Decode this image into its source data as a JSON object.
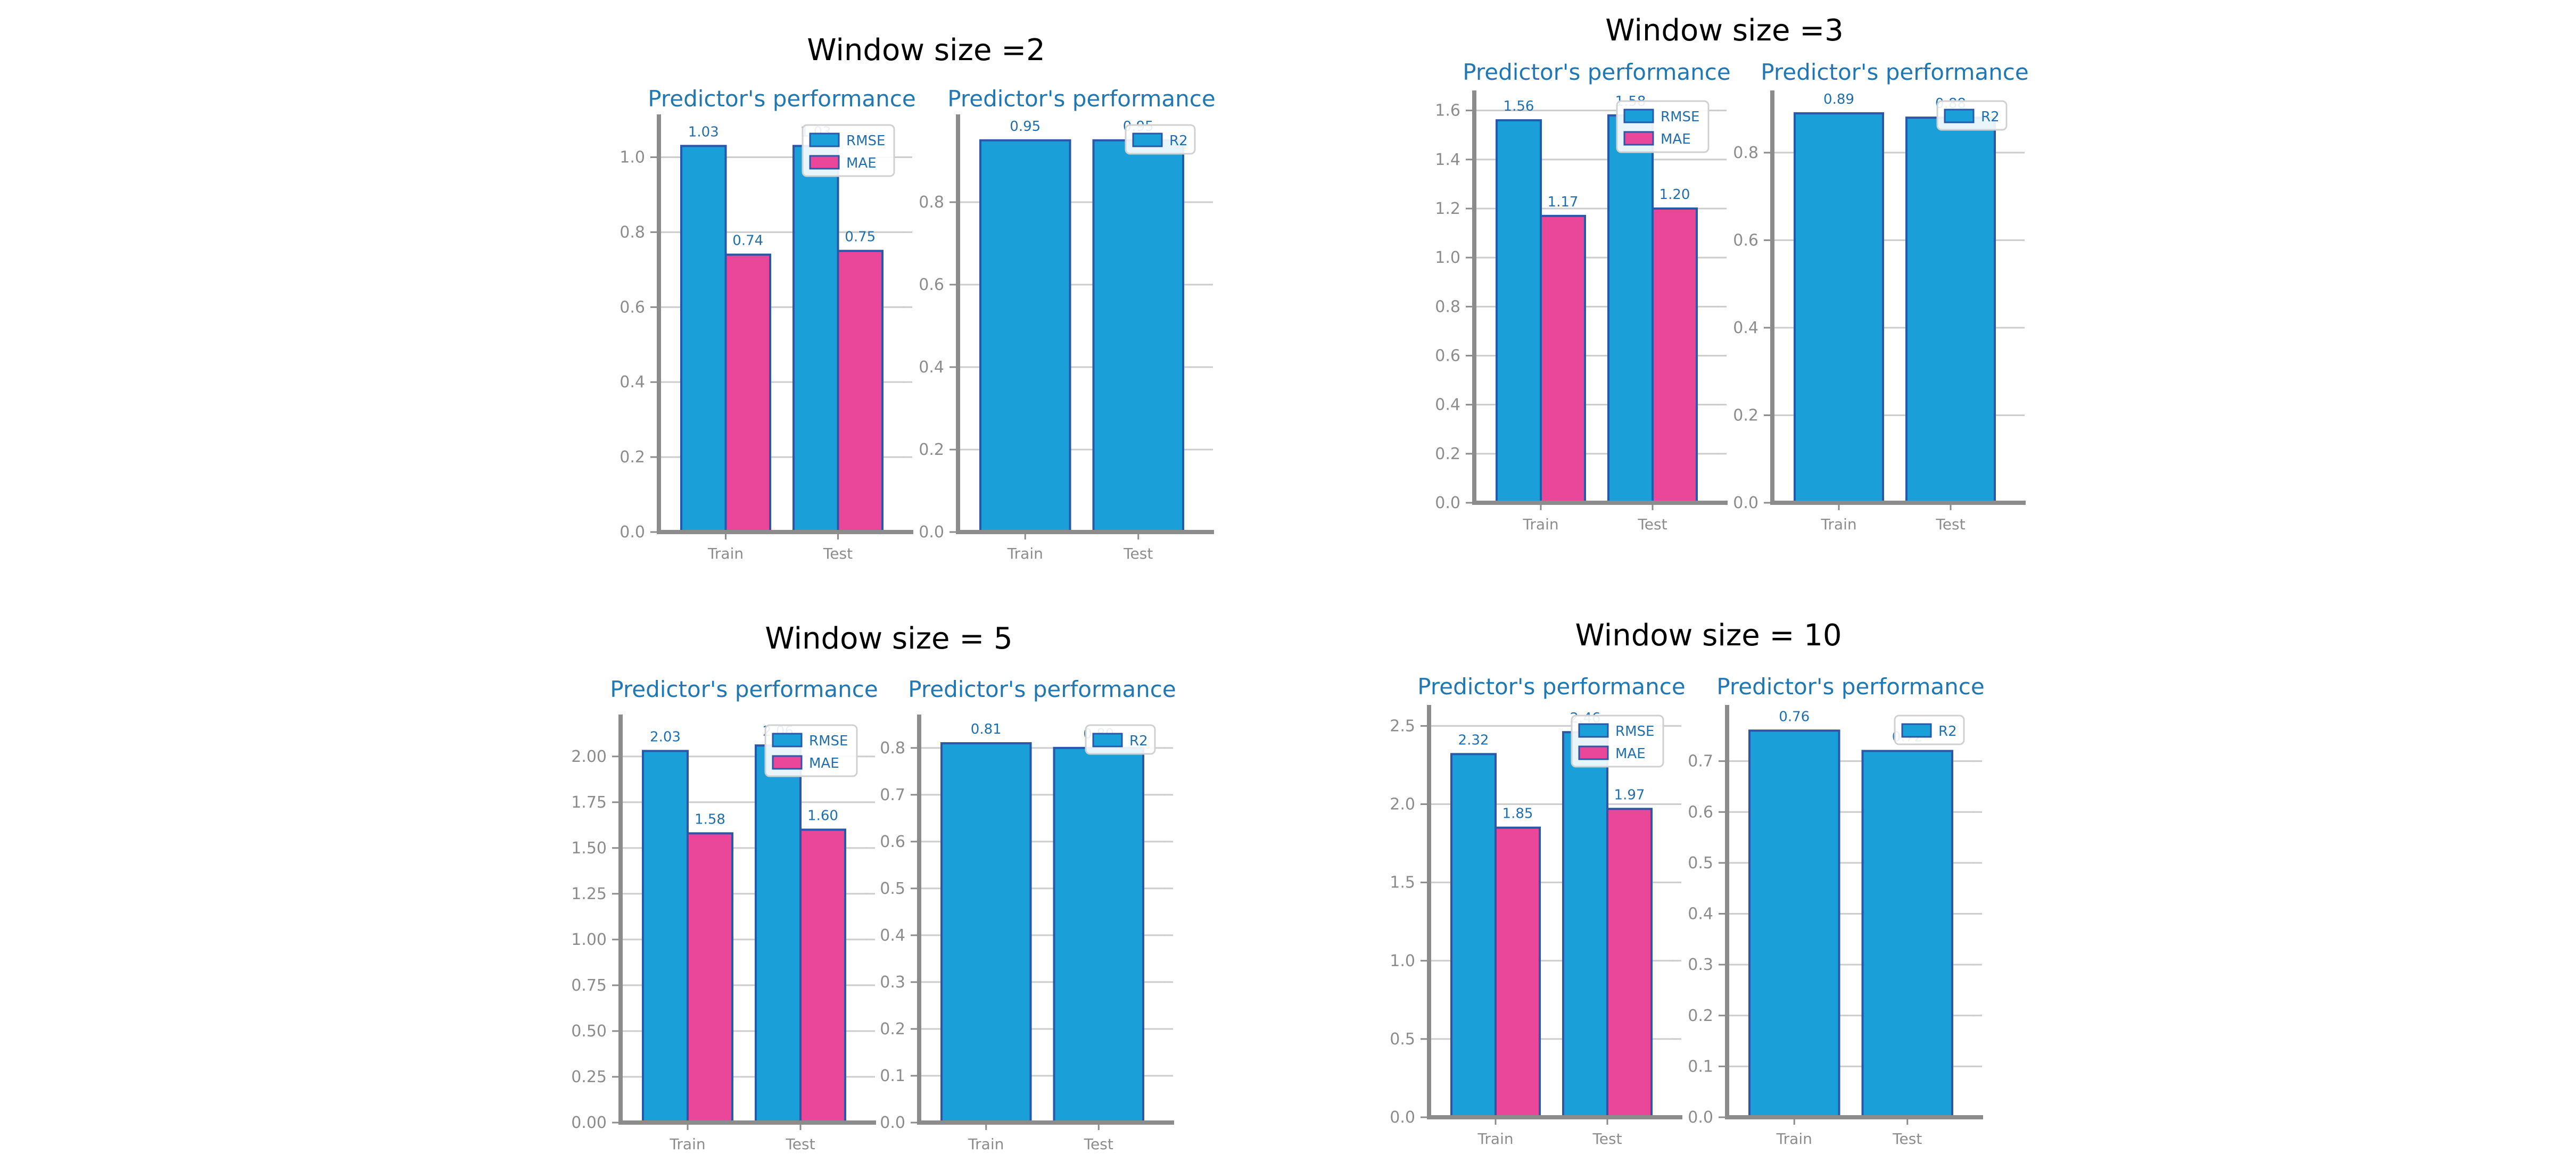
{
  "colors": {
    "rmse": "#1a9fd8",
    "mae": "#ea479a",
    "r2": "#1a9fd8",
    "bar_edge": "#2a58a8",
    "grid": "#cccccc",
    "axis": "#8c8c8c",
    "title": "#1f77b4",
    "label": "#1f6fb0"
  },
  "panels": [
    {
      "title": "Window size =2"
    },
    {
      "title": "Window size =3"
    },
    {
      "title": "Window size = 5"
    },
    {
      "title": "Window size = 10"
    }
  ],
  "chart_data": [
    {
      "type": "bar",
      "title": "Predictor's performance",
      "panel": "Window size =2",
      "categories": [
        "Train",
        "Test"
      ],
      "series": [
        {
          "name": "RMSE",
          "values": [
            1.03,
            1.03
          ],
          "labels": [
            "1.03",
            "1.03"
          ]
        },
        {
          "name": "MAE",
          "values": [
            0.74,
            0.75
          ],
          "labels": [
            "0.74",
            "0.75"
          ]
        }
      ],
      "ylim": [
        0,
        1.1
      ],
      "yticks": [
        "0.0",
        "0.2",
        "0.4",
        "0.6",
        "0.8",
        "1.0"
      ],
      "legend": "top-right",
      "grid": true
    },
    {
      "type": "bar",
      "title": "Predictor's performance",
      "panel": "Window size =2",
      "categories": [
        "Train",
        "Test"
      ],
      "series": [
        {
          "name": "R2",
          "values": [
            0.95,
            0.95
          ],
          "labels": [
            "0.95",
            "0.95"
          ]
        }
      ],
      "ylim": [
        0,
        1.0
      ],
      "yticks": [
        "0.0",
        "0.2",
        "0.4",
        "0.6",
        "0.8"
      ],
      "legend": "top-right",
      "grid": true
    },
    {
      "type": "bar",
      "title": "Predictor's performance",
      "panel": "Window size =3",
      "categories": [
        "Train",
        "Test"
      ],
      "series": [
        {
          "name": "RMSE",
          "values": [
            1.56,
            1.58
          ],
          "labels": [
            "1.56",
            "1.58"
          ]
        },
        {
          "name": "MAE",
          "values": [
            1.17,
            1.2
          ],
          "labels": [
            "1.17",
            "1.20"
          ]
        }
      ],
      "ylim": [
        0,
        1.66
      ],
      "yticks": [
        "0.0",
        "0.2",
        "0.4",
        "0.6",
        "0.8",
        "1.0",
        "1.2",
        "1.4",
        "1.6"
      ],
      "legend": "top-right",
      "grid": true
    },
    {
      "type": "bar",
      "title": "Predictor's performance",
      "panel": "Window size =3",
      "categories": [
        "Train",
        "Test"
      ],
      "series": [
        {
          "name": "R2",
          "values": [
            0.89,
            0.88
          ],
          "labels": [
            "0.89",
            "0.88"
          ]
        }
      ],
      "ylim": [
        0,
        0.93
      ],
      "yticks": [
        "0.0",
        "0.2",
        "0.4",
        "0.6",
        "0.8"
      ],
      "legend": "top-right",
      "grid": true
    },
    {
      "type": "bar",
      "title": "Predictor's performance",
      "panel": "Window size = 5",
      "categories": [
        "Train",
        "Test"
      ],
      "series": [
        {
          "name": "RMSE",
          "values": [
            2.03,
            2.06
          ],
          "labels": [
            "2.03",
            "2.06"
          ]
        },
        {
          "name": "MAE",
          "values": [
            1.58,
            1.6
          ],
          "labels": [
            "1.58",
            "1.60"
          ]
        }
      ],
      "ylim": [
        0,
        2.2
      ],
      "yticks": [
        "0.00",
        "0.25",
        "0.50",
        "0.75",
        "1.00",
        "1.25",
        "1.50",
        "1.75",
        "2.00"
      ],
      "legend": "top-right",
      "grid": true
    },
    {
      "type": "bar",
      "title": "Predictor's performance",
      "panel": "Window size = 5",
      "categories": [
        "Train",
        "Test"
      ],
      "series": [
        {
          "name": "R2",
          "values": [
            0.81,
            0.8
          ],
          "labels": [
            "0.81",
            "0.80"
          ]
        }
      ],
      "ylim": [
        0,
        0.86
      ],
      "yticks": [
        "0.0",
        "0.1",
        "0.2",
        "0.3",
        "0.4",
        "0.5",
        "0.6",
        "0.7",
        "0.8"
      ],
      "legend": "top-right",
      "grid": true
    },
    {
      "type": "bar",
      "title": "Predictor's performance",
      "panel": "Window size = 10",
      "categories": [
        "Train",
        "Test"
      ],
      "series": [
        {
          "name": "RMSE",
          "values": [
            2.32,
            2.46
          ],
          "labels": [
            "2.32",
            "2.46"
          ]
        },
        {
          "name": "MAE",
          "values": [
            1.85,
            1.97
          ],
          "labels": [
            "1.85",
            "1.97"
          ]
        }
      ],
      "ylim": [
        0,
        2.6
      ],
      "yticks": [
        "0.0",
        "0.5",
        "1.0",
        "1.5",
        "2.0",
        "2.5"
      ],
      "legend": "top-right",
      "grid": true
    },
    {
      "type": "bar",
      "title": "Predictor's performance",
      "panel": "Window size = 10",
      "categories": [
        "Train",
        "Test"
      ],
      "series": [
        {
          "name": "R2",
          "values": [
            0.76,
            0.72
          ],
          "labels": [
            "0.76",
            "0.72"
          ]
        }
      ],
      "ylim": [
        0,
        0.8
      ],
      "yticks": [
        "0.0",
        "0.1",
        "0.2",
        "0.3",
        "0.4",
        "0.5",
        "0.6",
        "0.7"
      ],
      "legend": "top-right",
      "grid": true
    }
  ]
}
